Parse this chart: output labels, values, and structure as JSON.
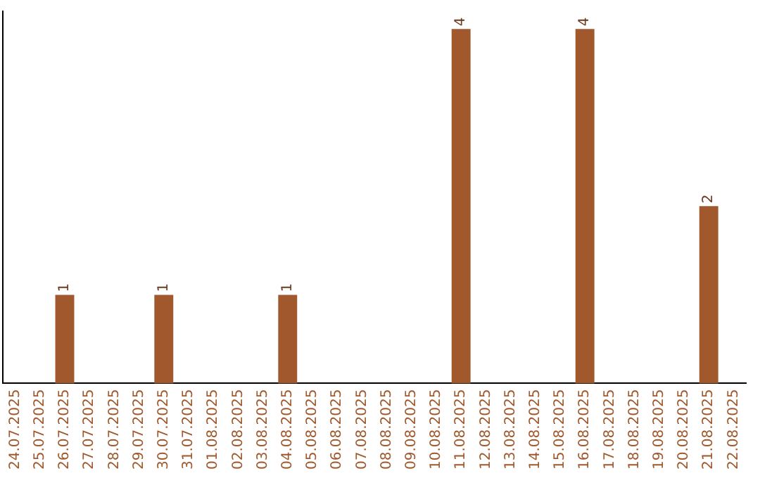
{
  "chart_data": {
    "type": "bar",
    "categories": [
      "24.07.2025",
      "25.07.2025",
      "26.07.2025",
      "27.07.2025",
      "28.07.2025",
      "29.07.2025",
      "30.07.2025",
      "31.07.2025",
      "01.08.2025",
      "02.08.2025",
      "03.08.2025",
      "04.08.2025",
      "05.08.2025",
      "06.08.2025",
      "07.08.2025",
      "08.08.2025",
      "09.08.2025",
      "10.08.2025",
      "11.08.2025",
      "12.08.2025",
      "13.08.2025",
      "14.08.2025",
      "15.08.2025",
      "16.08.2025",
      "17.08.2025",
      "18.08.2025",
      "19.08.2025",
      "20.08.2025",
      "21.08.2025",
      "22.08.2025"
    ],
    "values": [
      null,
      null,
      1,
      null,
      null,
      null,
      1,
      null,
      null,
      null,
      null,
      1,
      null,
      null,
      null,
      null,
      null,
      null,
      4,
      null,
      null,
      null,
      null,
      4,
      null,
      null,
      null,
      null,
      2,
      null
    ],
    "color": "#a0582c",
    "ylim": [
      0,
      4.2
    ],
    "data_labels": true,
    "tick_labels": "x",
    "grid": false,
    "legend": false
  }
}
